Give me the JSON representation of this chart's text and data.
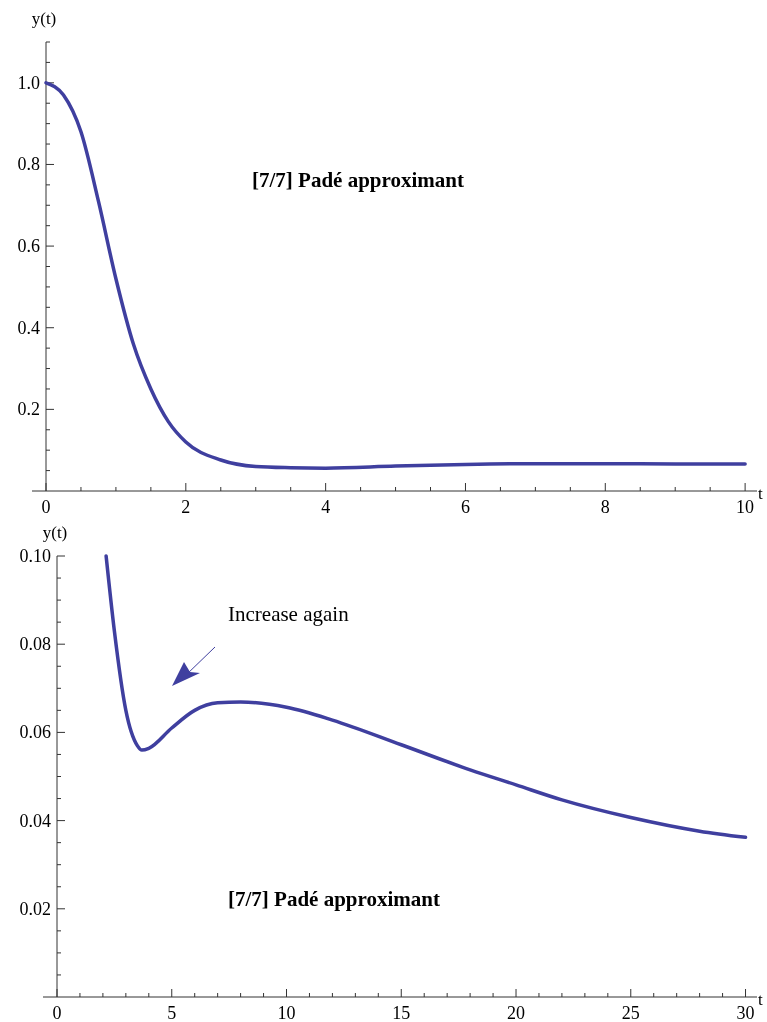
{
  "chart_data": [
    {
      "type": "line",
      "xlabel": "t",
      "ylabel": "y(t)",
      "annotations": [
        "[7/7] Padé approximant"
      ],
      "x": [
        0,
        0.25,
        0.5,
        0.75,
        1,
        1.25,
        1.5,
        1.75,
        2,
        2.5,
        3,
        3.5,
        4,
        5,
        6,
        7,
        8,
        9,
        10
      ],
      "series": [
        {
          "color": "#3f3f9f",
          "values": [
            1.0,
            0.97,
            0.88,
            0.71,
            0.52,
            0.36,
            0.25,
            0.17,
            0.12,
            0.076,
            0.06,
            0.057,
            0.056,
            0.061,
            0.065,
            0.067,
            0.067,
            0.066,
            0.066
          ]
        }
      ],
      "xlim": [
        0,
        10.17
      ],
      "ylim": [
        0,
        1.1
      ],
      "xticks": [
        0,
        {
          "value": 0.5,
          "label": null
        },
        {
          "value": 1,
          "label": null
        },
        {
          "value": 1.5,
          "label": null
        },
        2,
        {
          "value": 2.5,
          "label": null
        },
        {
          "value": 3,
          "label": null
        },
        {
          "value": 3.5,
          "label": null
        },
        4,
        {
          "value": 4.5,
          "label": null
        },
        {
          "value": 5,
          "label": null
        },
        {
          "value": 5.5,
          "label": null
        },
        6,
        {
          "value": 6.5,
          "label": null
        },
        {
          "value": 7,
          "label": null
        },
        {
          "value": 7.5,
          "label": null
        },
        8,
        {
          "value": 8.5,
          "label": null
        },
        {
          "value": 9,
          "label": null
        },
        {
          "value": 9.5,
          "label": null
        },
        10
      ],
      "yticks": [
        {
          "value": 0.05,
          "label": null
        },
        {
          "value": 0.1,
          "label": null
        },
        {
          "value": 0.15,
          "label": null
        },
        0.2,
        {
          "value": 0.25,
          "label": null
        },
        {
          "value": 0.3,
          "label": null
        },
        {
          "value": 0.35,
          "label": null
        },
        0.4,
        {
          "value": 0.45,
          "label": null
        },
        {
          "value": 0.5,
          "label": null
        },
        {
          "value": 0.55,
          "label": null
        },
        0.6,
        {
          "value": 0.65,
          "label": null
        },
        {
          "value": 0.7,
          "label": null
        },
        {
          "value": 0.75,
          "label": null
        },
        0.8,
        {
          "value": 0.85,
          "label": null
        },
        {
          "value": 0.9,
          "label": null
        },
        {
          "value": 0.95,
          "label": null
        },
        {
          "value": 1,
          "label": "1.0"
        },
        {
          "value": 1.05,
          "label": null
        },
        {
          "value": 1.1,
          "label": null
        }
      ]
    },
    {
      "type": "line",
      "xlabel": "t",
      "ylabel": "y(t)",
      "annotations": [
        "Increase again",
        "[7/7] Padé approximant"
      ],
      "x": [
        2.14,
        2.5,
        3,
        3.5,
        3.7,
        4,
        5,
        6,
        7,
        8,
        10,
        12,
        15,
        18,
        20,
        22,
        25,
        28,
        30
      ],
      "series": [
        {
          "color": "#3f3f9f",
          "values": [
            0.1,
            0.083,
            0.065,
            0.057,
            0.056,
            0.0564,
            0.061,
            0.065,
            0.0667,
            0.0669,
            0.0657,
            0.0628,
            0.0572,
            0.0515,
            0.0481,
            0.0447,
            0.0407,
            0.0376,
            0.0362
          ]
        }
      ],
      "xlim": [
        0,
        30.5
      ],
      "ylim": [
        0,
        0.1
      ],
      "xticks": [
        0,
        {
          "value": 1,
          "label": null
        },
        {
          "value": 2,
          "label": null
        },
        {
          "value": 3,
          "label": null
        },
        {
          "value": 4,
          "label": null
        },
        5,
        {
          "value": 6,
          "label": null
        },
        {
          "value": 7,
          "label": null
        },
        {
          "value": 8,
          "label": null
        },
        {
          "value": 9,
          "label": null
        },
        10,
        {
          "value": 11,
          "label": null
        },
        {
          "value": 12,
          "label": null
        },
        {
          "value": 13,
          "label": null
        },
        {
          "value": 14,
          "label": null
        },
        15,
        {
          "value": 16,
          "label": null
        },
        {
          "value": 17,
          "label": null
        },
        {
          "value": 18,
          "label": null
        },
        {
          "value": 19,
          "label": null
        },
        20,
        {
          "value": 21,
          "label": null
        },
        {
          "value": 22,
          "label": null
        },
        {
          "value": 23,
          "label": null
        },
        {
          "value": 24,
          "label": null
        },
        25,
        {
          "value": 26,
          "label": null
        },
        {
          "value": 27,
          "label": null
        },
        {
          "value": 28,
          "label": null
        },
        {
          "value": 29,
          "label": null
        },
        30
      ],
      "yticks": [
        {
          "value": 0.005,
          "label": null
        },
        {
          "value": 0.01,
          "label": null
        },
        {
          "value": 0.015,
          "label": null
        },
        0.02,
        {
          "value": 0.025,
          "label": null
        },
        {
          "value": 0.03,
          "label": null
        },
        {
          "value": 0.035,
          "label": null
        },
        0.04,
        {
          "value": 0.045,
          "label": null
        },
        {
          "value": 0.05,
          "label": null
        },
        {
          "value": 0.055,
          "label": null
        },
        0.06,
        {
          "value": 0.065,
          "label": null
        },
        {
          "value": 0.07,
          "label": null
        },
        {
          "value": 0.075,
          "label": null
        },
        0.08,
        {
          "value": 0.085,
          "label": null
        },
        {
          "value": 0.09,
          "label": null
        },
        {
          "value": 0.095,
          "label": null
        },
        {
          "value": 0.1,
          "label": "0.10"
        }
      ]
    }
  ]
}
